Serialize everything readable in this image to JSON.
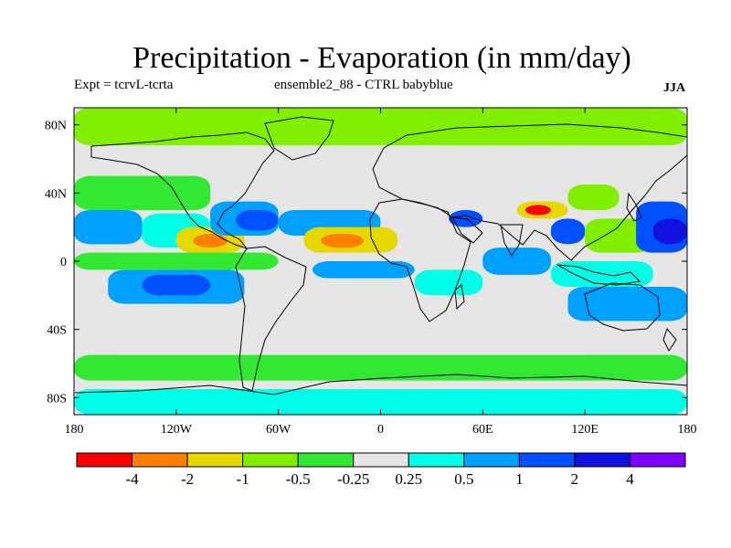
{
  "figure": {
    "title": "Precipitation - Evaporation (in mm/day)",
    "experiment": "Expt = tcrvL-tcrta",
    "ensemble": "ensemble2_88 - CTRL babyblue",
    "season": "JJA"
  },
  "map": {
    "projection": "cylindrical equidistant",
    "lon_range": [
      -180,
      180
    ],
    "lat_range": [
      -90,
      90
    ],
    "x_ticks": [
      {
        "value": -180,
        "label": "180"
      },
      {
        "value": -120,
        "label": "120W"
      },
      {
        "value": -60,
        "label": "60W"
      },
      {
        "value": 0,
        "label": "0"
      },
      {
        "value": 60,
        "label": "60E"
      },
      {
        "value": 120,
        "label": "120E"
      },
      {
        "value": 180,
        "label": "180"
      }
    ],
    "y_ticks": [
      {
        "value": 80,
        "label": "80N"
      },
      {
        "value": 40,
        "label": "40N"
      },
      {
        "value": 0,
        "label": "0"
      },
      {
        "value": -40,
        "label": "40S"
      },
      {
        "value": -80,
        "label": "80S"
      }
    ],
    "colorbar": {
      "colors": [
        "#ff0000",
        "#ff8000",
        "#e6d800",
        "#80f000",
        "#33e833",
        "#e6e6e6",
        "#00ffe6",
        "#00a0ff",
        "#0050ff",
        "#1010e0",
        "#8000ff"
      ],
      "labels": [
        "-4",
        "-2",
        "-1",
        "-0.5",
        "-0.25",
        "0.25",
        "0.5",
        "1",
        "2",
        "4"
      ]
    },
    "fields": [
      {
        "lon": [
          -180,
          180
        ],
        "lat": [
          68,
          90
        ],
        "level": 3
      },
      {
        "lon": [
          -180,
          -100
        ],
        "lat": [
          30,
          50
        ],
        "level": 4
      },
      {
        "lon": [
          -180,
          -140
        ],
        "lat": [
          10,
          30
        ],
        "level": 7
      },
      {
        "lon": [
          -140,
          -100
        ],
        "lat": [
          8,
          28
        ],
        "level": 6
      },
      {
        "lon": [
          -120,
          -80
        ],
        "lat": [
          5,
          20
        ],
        "level": 2
      },
      {
        "lon": [
          -110,
          -90
        ],
        "lat": [
          8,
          16
        ],
        "level": 1
      },
      {
        "lon": [
          -100,
          -60
        ],
        "lat": [
          15,
          35
        ],
        "level": 7
      },
      {
        "lon": [
          -85,
          -60
        ],
        "lat": [
          18,
          30
        ],
        "level": 8
      },
      {
        "lon": [
          -60,
          0
        ],
        "lat": [
          15,
          30
        ],
        "level": 7
      },
      {
        "lon": [
          -45,
          10
        ],
        "lat": [
          5,
          20
        ],
        "level": 2
      },
      {
        "lon": [
          -35,
          -10
        ],
        "lat": [
          8,
          16
        ],
        "level": 1
      },
      {
        "lon": [
          -180,
          -60
        ],
        "lat": [
          -5,
          5
        ],
        "level": 4
      },
      {
        "lon": [
          -160,
          -80
        ],
        "lat": [
          -25,
          -5
        ],
        "level": 7
      },
      {
        "lon": [
          -140,
          -100
        ],
        "lat": [
          -20,
          -8
        ],
        "level": 8
      },
      {
        "lon": [
          -40,
          20
        ],
        "lat": [
          -10,
          0
        ],
        "level": 7
      },
      {
        "lon": [
          40,
          60
        ],
        "lat": [
          20,
          30
        ],
        "level": 8
      },
      {
        "lon": [
          60,
          100
        ],
        "lat": [
          -8,
          8
        ],
        "level": 7
      },
      {
        "lon": [
          20,
          60
        ],
        "lat": [
          -20,
          -5
        ],
        "level": 6
      },
      {
        "lon": [
          80,
          110
        ],
        "lat": [
          25,
          35
        ],
        "level": 2
      },
      {
        "lon": [
          85,
          100
        ],
        "lat": [
          27,
          33
        ],
        "level": 0
      },
      {
        "lon": [
          110,
          140
        ],
        "lat": [
          30,
          45
        ],
        "level": 3
      },
      {
        "lon": [
          100,
          120
        ],
        "lat": [
          10,
          25
        ],
        "level": 8
      },
      {
        "lon": [
          120,
          160
        ],
        "lat": [
          5,
          25
        ],
        "level": 3
      },
      {
        "lon": [
          150,
          180
        ],
        "lat": [
          5,
          35
        ],
        "level": 8
      },
      {
        "lon": [
          160,
          180
        ],
        "lat": [
          10,
          25
        ],
        "level": 9
      },
      {
        "lon": [
          100,
          160
        ],
        "lat": [
          -15,
          0
        ],
        "level": 6
      },
      {
        "lon": [
          110,
          180
        ],
        "lat": [
          -35,
          -15
        ],
        "level": 7
      },
      {
        "lon": [
          -180,
          180
        ],
        "lat": [
          -70,
          -55
        ],
        "level": 4
      },
      {
        "lon": [
          -180,
          180
        ],
        "lat": [
          -90,
          -75
        ],
        "level": 6
      }
    ]
  }
}
